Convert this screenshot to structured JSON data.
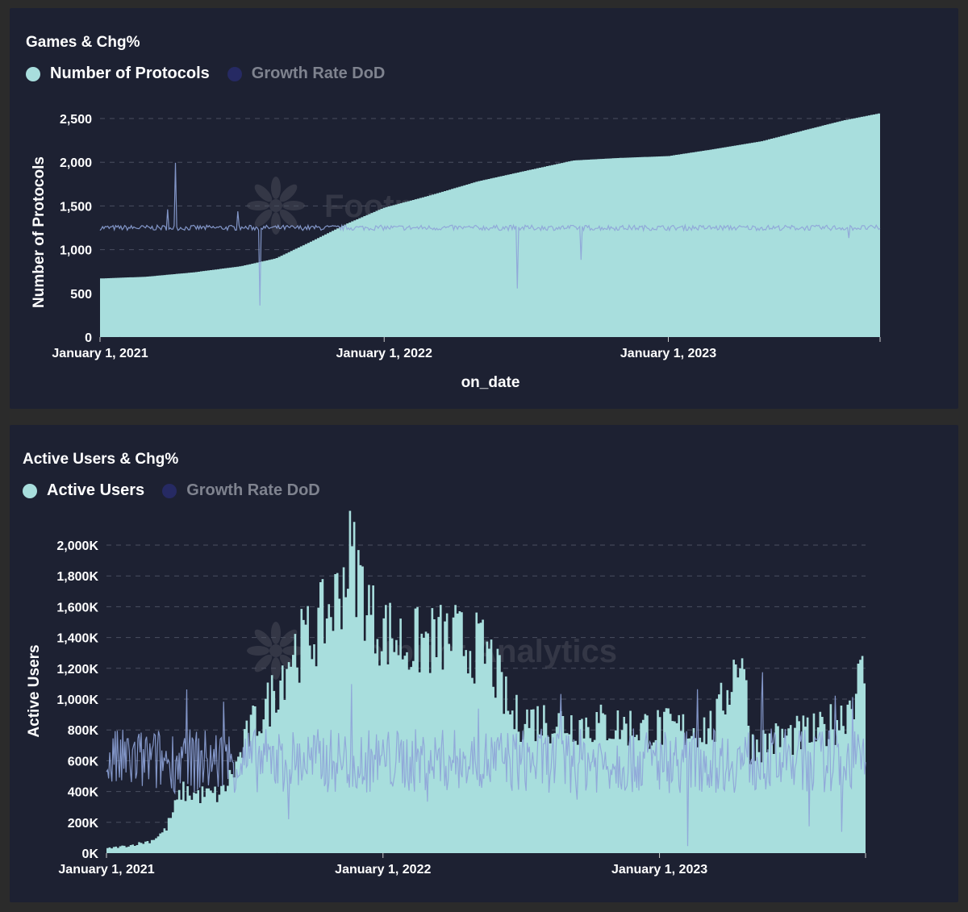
{
  "colors": {
    "panel_bg": "#1d2132",
    "primary_series": "#a8dedd",
    "growth_series": "#232757",
    "growth_line_overlay": "#7f95c8",
    "grid": "#4a4f60",
    "text": "#ffffff",
    "muted": "#7f838f"
  },
  "charts": [
    {
      "title": "Games & Chg%",
      "legend": [
        {
          "label": "Number of Protocols",
          "icon": "dot-icon",
          "active": true
        },
        {
          "label": "Growth Rate DoD",
          "icon": "dot-icon",
          "active": false
        }
      ],
      "ylabel": "Number of Protocols",
      "xlabel": "on_date",
      "yticks": [
        "0",
        "500",
        "1,000",
        "1,500",
        "2,000",
        "2,500"
      ],
      "xticks": [
        "January 1, 2021",
        "January 1, 2022",
        "January 1, 2023"
      ],
      "watermark": "Footprint Analytics"
    },
    {
      "title": "Active Users & Chg%",
      "legend": [
        {
          "label": "Active Users",
          "icon": "dot-icon",
          "active": true
        },
        {
          "label": "Growth Rate DoD",
          "icon": "dot-icon",
          "active": false
        }
      ],
      "ylabel": "Active Users",
      "xlabel": "",
      "yticks": [
        "0K",
        "200K",
        "400K",
        "600K",
        "800K",
        "1,000K",
        "1,200K",
        "1,400K",
        "1,600K",
        "1,800K",
        "2,000K"
      ],
      "xticks": [
        "January 1, 2021",
        "January 1, 2022",
        "January 1, 2023"
      ],
      "watermark": "Footprint Analytics"
    }
  ],
  "chart_data": [
    {
      "type": "bar",
      "title": "Games & Chg%",
      "xlabel": "on_date",
      "ylabel": "Number of Protocols",
      "x_range": [
        "2021-01-01",
        "2023-09-30"
      ],
      "ylim": [
        0,
        2500
      ],
      "grid": true,
      "legend_position": "top-left",
      "series": [
        {
          "name": "Number of Protocols",
          "kind": "bar",
          "points": [
            [
              "2021-01-01",
              670
            ],
            [
              "2021-03-01",
              690
            ],
            [
              "2021-05-01",
              740
            ],
            [
              "2021-07-01",
              810
            ],
            [
              "2021-08-15",
              900
            ],
            [
              "2021-10-01",
              1100
            ],
            [
              "2021-11-15",
              1300
            ],
            [
              "2022-01-01",
              1480
            ],
            [
              "2022-03-01",
              1620
            ],
            [
              "2022-05-01",
              1780
            ],
            [
              "2022-07-01",
              1900
            ],
            [
              "2022-09-01",
              2020
            ],
            [
              "2022-11-01",
              2050
            ],
            [
              "2023-01-01",
              2070
            ],
            [
              "2023-03-01",
              2150
            ],
            [
              "2023-05-01",
              2240
            ],
            [
              "2023-07-01",
              2380
            ],
            [
              "2023-08-15",
              2480
            ],
            [
              "2023-09-30",
              2560
            ]
          ]
        },
        {
          "name": "Growth Rate DoD",
          "kind": "line",
          "baseline_level": 1250
        }
      ]
    },
    {
      "type": "bar",
      "title": "Active Users & Chg%",
      "xlabel": "",
      "ylabel": "Active Users",
      "x_range": [
        "2021-01-01",
        "2023-09-30"
      ],
      "ylim": [
        0,
        2000
      ],
      "unit": "K",
      "grid": true,
      "legend_position": "top-left",
      "series": [
        {
          "name": "Active Users",
          "kind": "bar",
          "points": [
            [
              "2021-01-01",
              30
            ],
            [
              "2021-02-01",
              50
            ],
            [
              "2021-03-01",
              80
            ],
            [
              "2021-03-20",
              150
            ],
            [
              "2021-04-10",
              400
            ],
            [
              "2021-05-01",
              380
            ],
            [
              "2021-06-01",
              380
            ],
            [
              "2021-06-20",
              550
            ],
            [
              "2021-07-10",
              800
            ],
            [
              "2021-08-01",
              950
            ],
            [
              "2021-09-01",
              1300
            ],
            [
              "2021-10-01",
              1420
            ],
            [
              "2021-11-01",
              1650
            ],
            [
              "2021-11-20",
              1950
            ],
            [
              "2021-12-20",
              1500
            ],
            [
              "2022-02-01",
              1350
            ],
            [
              "2022-04-01",
              1400
            ],
            [
              "2022-05-20",
              1300
            ],
            [
              "2022-06-20",
              880
            ],
            [
              "2022-09-01",
              850
            ],
            [
              "2022-12-01",
              820
            ],
            [
              "2023-02-01",
              800
            ],
            [
              "2023-03-15",
              820
            ],
            [
              "2023-04-20",
              1350
            ],
            [
              "2023-05-01",
              700
            ],
            [
              "2023-06-15",
              750
            ],
            [
              "2023-08-01",
              780
            ],
            [
              "2023-09-01",
              900
            ],
            [
              "2023-09-25",
              1150
            ]
          ]
        },
        {
          "name": "Growth Rate DoD",
          "kind": "line",
          "baseline_level": 600
        }
      ]
    }
  ]
}
